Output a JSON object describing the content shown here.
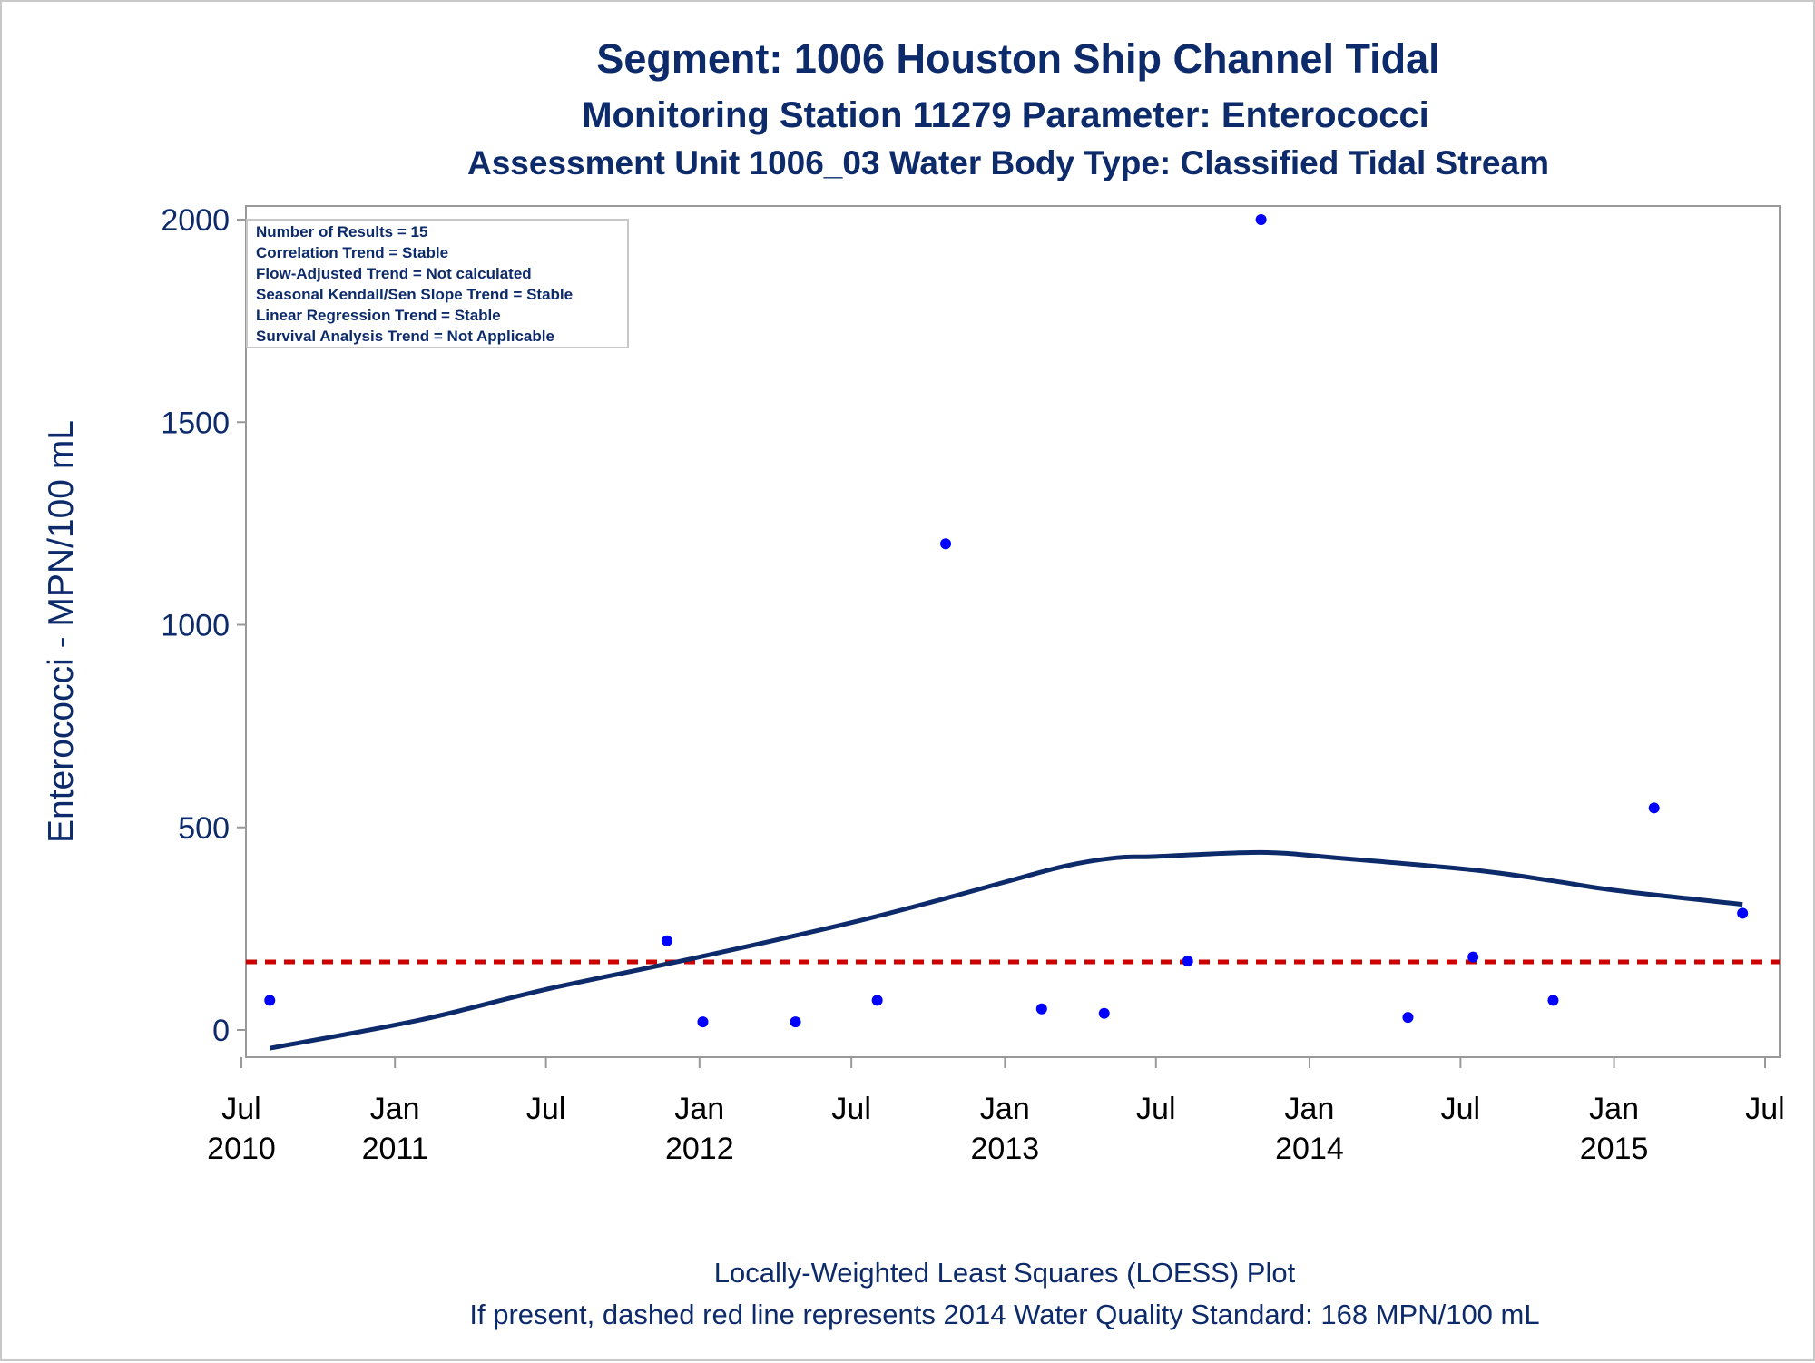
{
  "titles": {
    "line1": "Segment: 1006  Houston Ship Channel Tidal",
    "line2": "Monitoring Station 11279 Parameter: Enterococci",
    "line3": "Assessment Unit 1006_03   Water Body Type: Classified Tidal Stream"
  },
  "footnotes": {
    "line1": "Locally-Weighted Least Squares (LOESS) Plot",
    "line2": "If present, dashed red line represents 2014 Water Quality Standard: 168 MPN/100 mL"
  },
  "stats_box": [
    "Number of Results = 15",
    "Correlation Trend = Stable",
    "Flow-Adjusted Trend = Not calculated",
    "Seasonal Kendall/Sen Slope Trend = Stable",
    "Linear Regression Trend = Stable",
    "Survival Analysis Trend = Not Applicable"
  ],
  "colors": {
    "points": "#0000ff",
    "loess": "#0d2b6b",
    "standard_line": "#cc0000",
    "text": "#0d2b6b"
  },
  "chart_data": {
    "type": "scatter",
    "ylabel": "Enterococci - MPN/100 mL",
    "xlabel": "",
    "ylim": [
      -70,
      2030
    ],
    "xlim": [
      "2010-07-01",
      "2015-07-01"
    ],
    "y_ticks": [
      0,
      500,
      1000,
      1500,
      2000
    ],
    "x_ticks": [
      {
        "date": "2010-07-01",
        "line1": "Jul",
        "line2": "2010"
      },
      {
        "date": "2011-01-01",
        "line1": "Jan",
        "line2": "2011"
      },
      {
        "date": "2011-07-01",
        "line1": "Jul",
        "line2": ""
      },
      {
        "date": "2012-01-01",
        "line1": "Jan",
        "line2": "2012"
      },
      {
        "date": "2012-07-01",
        "line1": "Jul",
        "line2": ""
      },
      {
        "date": "2013-01-01",
        "line1": "Jan",
        "line2": "2013"
      },
      {
        "date": "2013-07-01",
        "line1": "Jul",
        "line2": ""
      },
      {
        "date": "2014-01-01",
        "line1": "Jan",
        "line2": "2014"
      },
      {
        "date": "2014-07-01",
        "line1": "Jul",
        "line2": ""
      },
      {
        "date": "2015-01-01",
        "line1": "Jan",
        "line2": "2015"
      },
      {
        "date": "2015-07-01",
        "line1": "Jul",
        "line2": ""
      }
    ],
    "points": [
      {
        "date": "2010-08-04",
        "value": 73
      },
      {
        "date": "2011-11-23",
        "value": 220
      },
      {
        "date": "2012-01-05",
        "value": 20
      },
      {
        "date": "2012-04-25",
        "value": 20
      },
      {
        "date": "2012-08-01",
        "value": 73
      },
      {
        "date": "2012-10-22",
        "value": 1200
      },
      {
        "date": "2013-02-14",
        "value": 52
      },
      {
        "date": "2013-04-30",
        "value": 41
      },
      {
        "date": "2013-08-08",
        "value": 170
      },
      {
        "date": "2013-11-04",
        "value": 2000
      },
      {
        "date": "2014-04-29",
        "value": 31
      },
      {
        "date": "2014-07-16",
        "value": 180
      },
      {
        "date": "2014-10-20",
        "value": 73
      },
      {
        "date": "2015-02-18",
        "value": 548
      },
      {
        "date": "2015-06-04",
        "value": 288
      }
    ],
    "loess": [
      {
        "date": "2010-08-04",
        "value": -45
      },
      {
        "date": "2011-02-01",
        "value": 25
      },
      {
        "date": "2011-07-01",
        "value": 100
      },
      {
        "date": "2012-01-01",
        "value": 180
      },
      {
        "date": "2012-07-01",
        "value": 265
      },
      {
        "date": "2012-10-22",
        "value": 325
      },
      {
        "date": "2013-01-01",
        "value": 365
      },
      {
        "date": "2013-03-15",
        "value": 405
      },
      {
        "date": "2013-05-15",
        "value": 425
      },
      {
        "date": "2013-07-01",
        "value": 428
      },
      {
        "date": "2013-11-04",
        "value": 438
      },
      {
        "date": "2014-02-01",
        "value": 425
      },
      {
        "date": "2014-07-16",
        "value": 395
      },
      {
        "date": "2014-10-20",
        "value": 368
      },
      {
        "date": "2015-01-01",
        "value": 345
      },
      {
        "date": "2015-06-04",
        "value": 310
      }
    ],
    "standard": {
      "value": 168
    }
  }
}
